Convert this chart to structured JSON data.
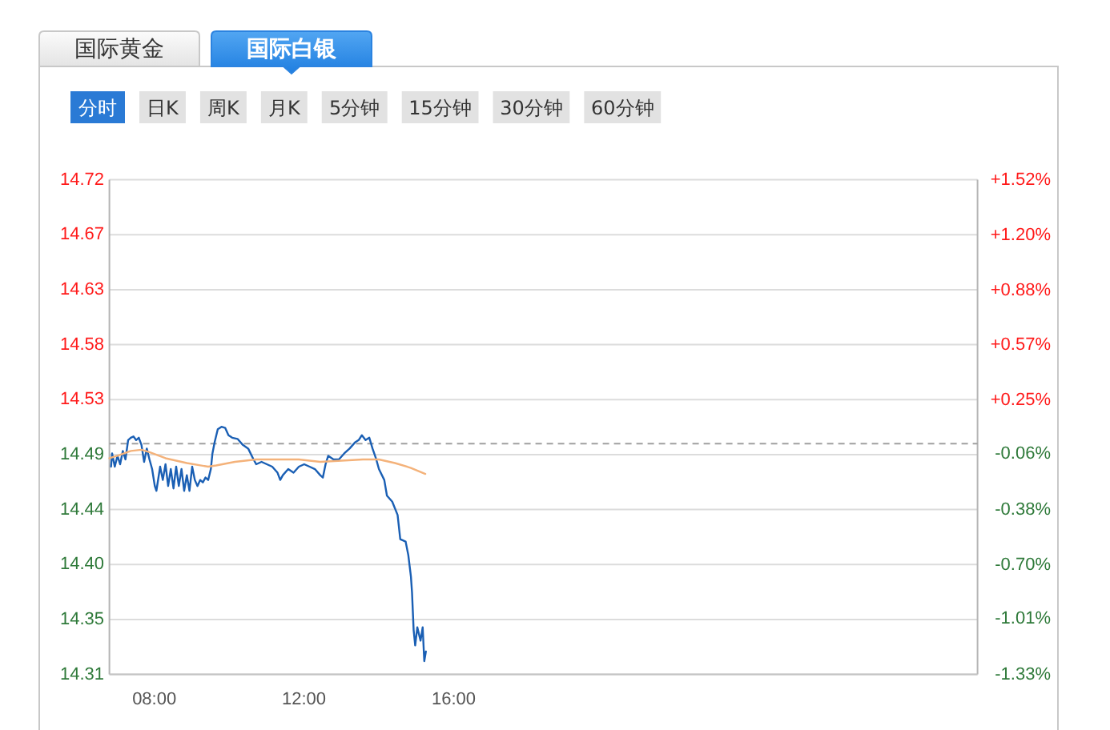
{
  "chart_data": {
    "type": "line",
    "annotations": [
      "国际黄金",
      "国际白银",
      "分时",
      "日K",
      "周K",
      "月K",
      "5分钟",
      "15分钟",
      "30分钟",
      "60分钟"
    ],
    "series": [
      {
        "color": "#1a5fb4",
        "x": [
          6.844,
          6.873,
          6.944,
          7.015,
          7.087,
          7.158,
          7.229,
          7.301,
          7.372,
          7.443,
          7.514,
          7.586,
          7.657,
          7.728,
          7.799,
          7.871,
          7.942,
          8.013,
          8.056,
          8.156,
          8.227,
          8.299,
          8.37,
          8.441,
          8.513,
          8.584,
          8.655,
          8.727,
          8.798,
          8.869,
          8.94,
          9.012,
          9.083,
          9.154,
          9.226,
          9.297,
          9.368,
          9.44,
          9.511,
          9.554,
          9.611,
          9.696,
          9.796,
          9.896,
          9.982,
          10.081,
          10.224,
          10.366,
          10.509,
          10.652,
          10.723,
          10.866,
          11.008,
          11.151,
          11.293,
          11.365,
          11.436,
          11.579,
          11.721,
          11.864,
          12.006,
          12.149,
          12.292,
          12.434,
          12.505,
          12.577,
          12.648,
          12.791,
          12.933,
          13.076,
          13.219,
          13.361,
          13.461,
          13.547,
          13.646,
          13.746,
          13.832,
          13.932,
          14.003,
          14.146,
          14.217,
          14.359,
          14.502,
          14.573,
          14.716,
          14.787,
          14.858,
          14.887,
          14.93,
          14.972,
          15.029,
          15.115,
          15.172,
          15.215,
          15.258
        ],
        "values": [
          14.479,
          14.49,
          14.479,
          14.488,
          14.481,
          14.492,
          14.485,
          14.501,
          14.503,
          14.504,
          14.501,
          14.503,
          14.497,
          14.483,
          14.494,
          14.485,
          14.477,
          14.463,
          14.459,
          14.479,
          14.468,
          14.481,
          14.463,
          14.477,
          14.461,
          14.479,
          14.463,
          14.477,
          14.459,
          14.472,
          14.459,
          14.479,
          14.468,
          14.463,
          14.468,
          14.466,
          14.47,
          14.468,
          14.477,
          14.49,
          14.499,
          14.51,
          14.512,
          14.511,
          14.505,
          14.503,
          14.502,
          14.497,
          14.494,
          14.485,
          14.481,
          14.483,
          14.481,
          14.479,
          14.474,
          14.468,
          14.472,
          14.477,
          14.474,
          14.479,
          14.481,
          14.479,
          14.477,
          14.472,
          14.47,
          14.481,
          14.488,
          14.485,
          14.485,
          14.49,
          14.494,
          14.499,
          14.501,
          14.505,
          14.501,
          14.503,
          14.494,
          14.485,
          14.477,
          14.468,
          14.455,
          14.45,
          14.439,
          14.419,
          14.417,
          14.406,
          14.388,
          14.375,
          14.344,
          14.331,
          14.346,
          14.335,
          14.346,
          14.318,
          14.326
        ]
      },
      {
        "color": "#f4b27a",
        "x": [
          6.8,
          7.015,
          7.372,
          7.657,
          7.871,
          8.299,
          8.869,
          9.44,
          9.653,
          10.153,
          10.723,
          11.293,
          11.864,
          12.434,
          13.005,
          13.575,
          14.003,
          14.431,
          14.858,
          15.243
        ],
        "values": [
          14.486,
          14.488,
          14.492,
          14.493,
          14.491,
          14.486,
          14.482,
          14.479,
          14.48,
          14.483,
          14.485,
          14.485,
          14.485,
          14.483,
          14.484,
          14.485,
          14.485,
          14.482,
          14.478,
          14.473
        ]
      }
    ],
    "xlim": [
      6.8,
      30
    ],
    "xticks": [
      {
        "value": 8,
        "label": "08:00"
      },
      {
        "value": 12,
        "label": "12:00"
      },
      {
        "value": 16,
        "label": "16:00"
      }
    ],
    "ylim": [
      14.307,
      14.7165
    ],
    "yticks": [
      {
        "value": 14.7165,
        "label": "14.72"
      },
      {
        "value": 14.671,
        "label": "14.67"
      },
      {
        "value": 14.6255,
        "label": "14.63"
      },
      14.58,
      {
        "value": 14.5345,
        "label": "14.53"
      },
      {
        "value": 14.489,
        "label": "14.49"
      },
      {
        "value": 14.4435,
        "label": "14.44"
      },
      {
        "value": 14.398,
        "label": "14.40"
      },
      {
        "value": 14.3525,
        "label": "14.35"
      },
      {
        "value": 14.307,
        "label": "14.31"
      }
    ],
    "y2lim": [
      -1.33,
      1.52
    ],
    "y2ticks": [
      {
        "value": 1.52,
        "label": "+1.52%"
      },
      {
        "value": 1.2,
        "label": "+1.20%"
      },
      {
        "value": 0.88,
        "label": "+0.88%"
      },
      {
        "value": 0.57,
        "label": "+0.57%"
      },
      {
        "value": 0.25,
        "label": "+0.25%"
      },
      {
        "value": -0.06,
        "label": "-0.06%"
      },
      {
        "value": -0.38,
        "label": "-0.38%"
      },
      {
        "value": -0.7,
        "label": "-0.70%"
      },
      {
        "value": -1.01,
        "label": "-1.01%"
      },
      {
        "value": -1.33,
        "label": "-1.33%"
      }
    ],
    "ref_lines": [
      {
        "axis": "y",
        "value": 14.498,
        "color": "#a0a0a0",
        "line_style": "dashed"
      }
    ],
    "grid": "y"
  }
}
